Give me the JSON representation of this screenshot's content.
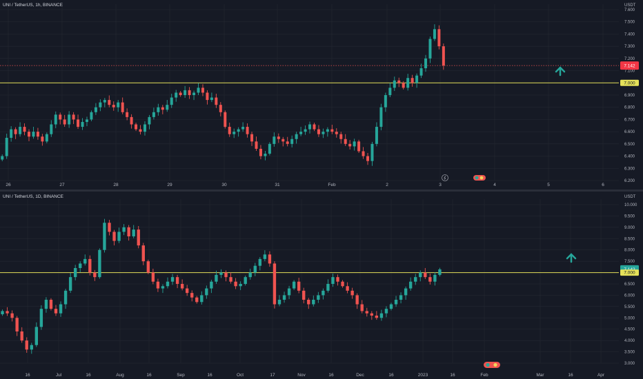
{
  "colors": {
    "background": "#161a25",
    "up": "#26a69a",
    "down": "#ef5350",
    "level_line": "#e5e15a",
    "grid": "#242832",
    "text": "#b2b5be"
  },
  "chart_data": [
    {
      "type": "candlestick",
      "title": "UNI / TetherUS, 1h, BINANCE",
      "y_unit": "USDT",
      "ylim": [
        6.2,
        7.6
      ],
      "y_ticks": [
        "7.600",
        "7.500",
        "7.400",
        "7.300",
        "7.200",
        "7.100",
        "7.000",
        "6.900",
        "6.800",
        "6.700",
        "6.600",
        "6.500",
        "6.400",
        "6.300",
        "6.200"
      ],
      "x_ticks": [
        "26",
        "27",
        "28",
        "29",
        "30",
        "31",
        "Feb",
        "2",
        "3",
        "4",
        "5",
        "6"
      ],
      "level": 7.0,
      "level_label": "7.000",
      "last_price_label": "7.142",
      "last_price_sublabel": "7 7",
      "closes": [
        6.4,
        6.55,
        6.62,
        6.58,
        6.64,
        6.6,
        6.56,
        6.6,
        6.56,
        6.52,
        6.58,
        6.66,
        6.74,
        6.7,
        6.66,
        6.74,
        6.7,
        6.64,
        6.68,
        6.7,
        6.76,
        6.8,
        6.84,
        6.86,
        6.82,
        6.8,
        6.84,
        6.76,
        6.72,
        6.66,
        6.62,
        6.6,
        6.66,
        6.72,
        6.76,
        6.8,
        6.78,
        6.82,
        6.88,
        6.92,
        6.9,
        6.94,
        6.9,
        6.92,
        6.96,
        6.92,
        6.86,
        6.88,
        6.82,
        6.76,
        6.64,
        6.58,
        6.6,
        6.62,
        6.64,
        6.58,
        6.52,
        6.46,
        6.4,
        6.42,
        6.5,
        6.56,
        6.54,
        6.52,
        6.5,
        6.54,
        6.58,
        6.6,
        6.62,
        6.66,
        6.62,
        6.58,
        6.6,
        6.62,
        6.6,
        6.58,
        6.54,
        6.5,
        6.48,
        6.52,
        6.44,
        6.4,
        6.36,
        6.5,
        6.64,
        6.8,
        6.9,
        6.96,
        7.02,
        7.0,
        6.96,
        7.04,
        7.0,
        7.06,
        7.12,
        7.2,
        7.36,
        7.44,
        7.3,
        7.142
      ],
      "last_index": 99,
      "slots": 115
    },
    {
      "type": "candlestick",
      "title": "UNI / TetherUS, 1D, BINANCE",
      "y_unit": "USDT",
      "ylim": [
        3.0,
        10.0
      ],
      "y_ticks": [
        "10.000",
        "9.500",
        "9.000",
        "8.500",
        "8.000",
        "7.500",
        "7.000",
        "6.500",
        "6.000",
        "5.500",
        "5.000",
        "4.500",
        "4.000",
        "3.500",
        "3.000"
      ],
      "x_ticks": [
        "16",
        "Jul",
        "16",
        "Aug",
        "16",
        "Sep",
        "16",
        "Oct",
        "17",
        "Nov",
        "16",
        "Dec",
        "16",
        "2023",
        "16",
        "Feb",
        "Mar",
        "16",
        "Apr"
      ],
      "level": 7.0,
      "level_label": "7.000",
      "last_price_label": "7.142",
      "closes": [
        5.3,
        5.2,
        5.0,
        4.4,
        4.0,
        3.6,
        3.8,
        4.6,
        5.4,
        5.8,
        5.4,
        5.2,
        5.6,
        6.2,
        6.8,
        7.2,
        7.4,
        7.6,
        7.0,
        6.8,
        8.0,
        9.2,
        8.8,
        8.4,
        8.8,
        9.0,
        8.6,
        8.9,
        8.2,
        7.5,
        7.0,
        6.6,
        6.3,
        6.4,
        6.6,
        6.8,
        6.5,
        6.3,
        6.1,
        5.9,
        5.7,
        6.0,
        6.3,
        6.6,
        6.9,
        7.0,
        6.8,
        6.6,
        6.4,
        6.5,
        6.8,
        7.0,
        7.3,
        7.6,
        7.8,
        7.4,
        5.6,
        5.8,
        6.0,
        6.3,
        6.6,
        6.2,
        5.8,
        5.6,
        5.8,
        6.0,
        6.2,
        6.5,
        6.8,
        6.6,
        6.4,
        6.2,
        6.0,
        5.6,
        5.3,
        5.2,
        5.1,
        5.0,
        5.2,
        5.4,
        5.6,
        5.8,
        6.0,
        6.3,
        6.6,
        6.8,
        7.0,
        6.8,
        6.6,
        6.9,
        7.142
      ],
      "last_index": 90,
      "slots": 115
    }
  ]
}
